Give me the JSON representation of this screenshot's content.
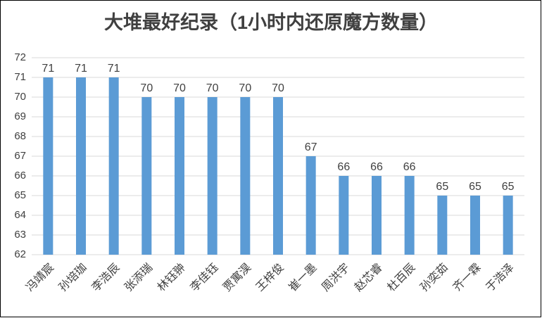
{
  "chart_data": {
    "type": "bar",
    "title": "大堆最好纪录（1小时内还原魔方数量）",
    "categories": [
      "冯靖宸",
      "孙培珈",
      "李浩辰",
      "张添瑞",
      "林钰翀",
      "李佳钰",
      "贾寓淏",
      "王梓俊",
      "崔一墨",
      "周洪宇",
      "赵芯睿",
      "杜百辰",
      "孙奕茹",
      "齐一霖",
      "于浩泽"
    ],
    "values": [
      71,
      71,
      71,
      70,
      70,
      70,
      70,
      70,
      67,
      66,
      66,
      66,
      65,
      65,
      65
    ],
    "color": "#5b9bd5",
    "ylim": [
      62,
      72
    ],
    "yticks": [
      62,
      63,
      64,
      65,
      66,
      67,
      68,
      69,
      70,
      71,
      72
    ],
    "grid": true
  }
}
